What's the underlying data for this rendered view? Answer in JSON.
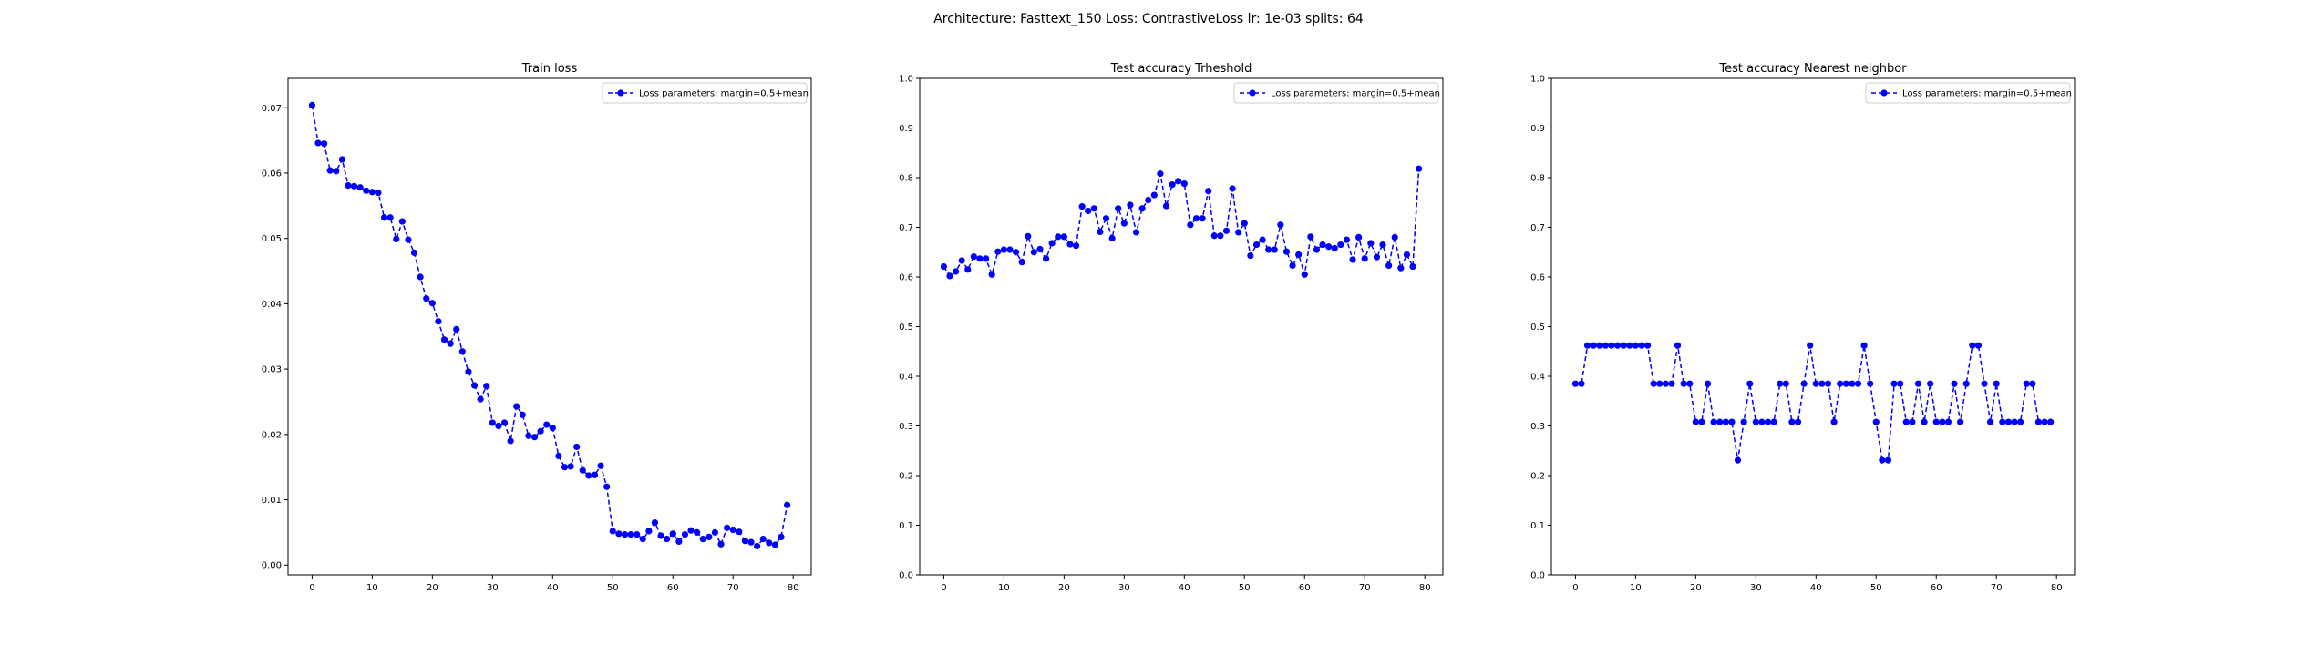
{
  "suptitle": "Architecture: Fasttext_150 Loss: ContrastiveLoss lr: 1e-03 splits: 64",
  "colors": {
    "series": "#0000ff",
    "frame": "#000000",
    "background": "#ffffff"
  },
  "chart_data": [
    {
      "type": "line",
      "title": "Train loss",
      "xlim": [
        -4,
        83
      ],
      "ylim": [
        -0.0015,
        0.0745
      ],
      "xticks": [
        0,
        10,
        20,
        30,
        40,
        50,
        60,
        70,
        80
      ],
      "yticks": [
        0.0,
        0.01,
        0.02,
        0.03,
        0.04,
        0.05,
        0.06,
        0.07
      ],
      "ytick_labels": [
        "0.00",
        "0.01",
        "0.02",
        "0.03",
        "0.04",
        "0.05",
        "0.06",
        "0.07"
      ],
      "legend_loc": "upper right",
      "series": [
        {
          "name": "Loss parameters: margin=0.5+mean",
          "style": "dashed line with circle markers",
          "x": [
            0,
            1,
            2,
            3,
            4,
            5,
            6,
            7,
            8,
            9,
            10,
            11,
            12,
            13,
            14,
            15,
            16,
            17,
            18,
            19,
            20,
            21,
            22,
            23,
            24,
            25,
            26,
            27,
            28,
            29,
            30,
            31,
            32,
            33,
            34,
            35,
            36,
            37,
            38,
            39,
            40,
            41,
            42,
            43,
            44,
            45,
            46,
            47,
            48,
            49,
            50,
            51,
            52,
            53,
            54,
            55,
            56,
            57,
            58,
            59,
            60,
            61,
            62,
            63,
            64,
            65,
            66,
            67,
            68,
            69,
            70,
            71,
            72,
            73,
            74,
            75,
            76,
            77,
            78,
            79
          ],
          "values": [
            0.0704,
            0.0646,
            0.0645,
            0.0604,
            0.0603,
            0.0621,
            0.0581,
            0.058,
            0.0578,
            0.0573,
            0.0571,
            0.057,
            0.0532,
            0.0532,
            0.0499,
            0.0526,
            0.0498,
            0.0478,
            0.0441,
            0.0408,
            0.0401,
            0.0373,
            0.0345,
            0.0339,
            0.0361,
            0.0327,
            0.0296,
            0.0275,
            0.0254,
            0.0274,
            0.0218,
            0.0213,
            0.0218,
            0.019,
            0.0243,
            0.023,
            0.0198,
            0.0196,
            0.0205,
            0.0215,
            0.021,
            0.0167,
            0.015,
            0.0151,
            0.0181,
            0.0145,
            0.0137,
            0.0138,
            0.0152,
            0.012,
            0.0052,
            0.0048,
            0.0047,
            0.0047,
            0.0047,
            0.004,
            0.0052,
            0.0065,
            0.0045,
            0.004,
            0.0048,
            0.0036,
            0.0047,
            0.0053,
            0.005,
            0.004,
            0.0043,
            0.005,
            0.0032,
            0.0057,
            0.0054,
            0.0051,
            0.0037,
            0.0035,
            0.0029,
            0.004,
            0.0034,
            0.0031,
            0.0043,
            0.0092
          ]
        }
      ]
    },
    {
      "type": "line",
      "title": "Test accuracy Trheshold",
      "xlim": [
        -4,
        83
      ],
      "ylim": [
        0.0,
        1.0
      ],
      "xticks": [
        0,
        10,
        20,
        30,
        40,
        50,
        60,
        70,
        80
      ],
      "yticks": [
        0.0,
        0.1,
        0.2,
        0.3,
        0.4,
        0.5,
        0.6,
        0.7,
        0.8,
        0.9,
        1.0
      ],
      "ytick_labels": [
        "0.0",
        "0.1",
        "0.2",
        "0.3",
        "0.4",
        "0.5",
        "0.6",
        "0.7",
        "0.8",
        "0.9",
        "1.0"
      ],
      "legend_loc": "upper right",
      "series": [
        {
          "name": "Loss parameters: margin=0.5+mean",
          "style": "dashed line with circle markers",
          "x": [
            0,
            1,
            2,
            3,
            4,
            5,
            6,
            7,
            8,
            9,
            10,
            11,
            12,
            13,
            14,
            15,
            16,
            17,
            18,
            19,
            20,
            21,
            22,
            23,
            24,
            25,
            26,
            27,
            28,
            29,
            30,
            31,
            32,
            33,
            34,
            35,
            36,
            37,
            38,
            39,
            40,
            41,
            42,
            43,
            44,
            45,
            46,
            47,
            48,
            49,
            50,
            51,
            52,
            53,
            54,
            55,
            56,
            57,
            58,
            59,
            60,
            61,
            62,
            63,
            64,
            65,
            66,
            67,
            68,
            69,
            70,
            71,
            72,
            73,
            74,
            75,
            76,
            77,
            78,
            79
          ],
          "values": [
            0.621,
            0.602,
            0.611,
            0.633,
            0.615,
            0.641,
            0.637,
            0.637,
            0.605,
            0.651,
            0.655,
            0.655,
            0.65,
            0.63,
            0.682,
            0.65,
            0.656,
            0.637,
            0.668,
            0.681,
            0.681,
            0.666,
            0.663,
            0.742,
            0.733,
            0.738,
            0.691,
            0.718,
            0.678,
            0.738,
            0.708,
            0.745,
            0.69,
            0.738,
            0.755,
            0.765,
            0.808,
            0.743,
            0.786,
            0.793,
            0.788,
            0.705,
            0.718,
            0.718,
            0.773,
            0.683,
            0.683,
            0.693,
            0.778,
            0.69,
            0.708,
            0.643,
            0.665,
            0.675,
            0.655,
            0.655,
            0.705,
            0.651,
            0.623,
            0.645,
            0.605,
            0.681,
            0.655,
            0.665,
            0.661,
            0.658,
            0.665,
            0.675,
            0.635,
            0.68,
            0.637,
            0.668,
            0.64,
            0.665,
            0.623,
            0.68,
            0.618,
            0.645,
            0.621,
            0.818
          ]
        }
      ]
    },
    {
      "type": "line",
      "title": "Test accuracy Nearest neighbor",
      "xlim": [
        -4,
        83
      ],
      "ylim": [
        0.0,
        1.0
      ],
      "xticks": [
        0,
        10,
        20,
        30,
        40,
        50,
        60,
        70,
        80
      ],
      "yticks": [
        0.0,
        0.1,
        0.2,
        0.3,
        0.4,
        0.5,
        0.6,
        0.7,
        0.8,
        0.9,
        1.0
      ],
      "ytick_labels": [
        "0.0",
        "0.1",
        "0.2",
        "0.3",
        "0.4",
        "0.5",
        "0.6",
        "0.7",
        "0.8",
        "0.9",
        "1.0"
      ],
      "legend_loc": "upper right",
      "series": [
        {
          "name": "Loss parameters: margin=0.5+mean",
          "style": "dashed line with circle markers",
          "x": [
            0,
            1,
            2,
            3,
            4,
            5,
            6,
            7,
            8,
            9,
            10,
            11,
            12,
            13,
            14,
            15,
            16,
            17,
            18,
            19,
            20,
            21,
            22,
            23,
            24,
            25,
            26,
            27,
            28,
            29,
            30,
            31,
            32,
            33,
            34,
            35,
            36,
            37,
            38,
            39,
            40,
            41,
            42,
            43,
            44,
            45,
            46,
            47,
            48,
            49,
            50,
            51,
            52,
            53,
            54,
            55,
            56,
            57,
            58,
            59,
            60,
            61,
            62,
            63,
            64,
            65,
            66,
            67,
            68,
            69,
            70,
            71,
            72,
            73,
            74,
            75,
            76,
            77,
            78,
            79
          ],
          "values": [
            0.385,
            0.385,
            0.462,
            0.462,
            0.462,
            0.462,
            0.462,
            0.462,
            0.462,
            0.462,
            0.462,
            0.462,
            0.462,
            0.385,
            0.385,
            0.385,
            0.385,
            0.462,
            0.385,
            0.385,
            0.308,
            0.308,
            0.385,
            0.308,
            0.308,
            0.308,
            0.308,
            0.231,
            0.308,
            0.385,
            0.308,
            0.308,
            0.308,
            0.308,
            0.385,
            0.385,
            0.308,
            0.308,
            0.385,
            0.462,
            0.385,
            0.385,
            0.385,
            0.308,
            0.385,
            0.385,
            0.385,
            0.385,
            0.462,
            0.385,
            0.308,
            0.231,
            0.231,
            0.385,
            0.385,
            0.308,
            0.308,
            0.385,
            0.308,
            0.385,
            0.308,
            0.308,
            0.308,
            0.385,
            0.308,
            0.385,
            0.462,
            0.462,
            0.385,
            0.308,
            0.385,
            0.308,
            0.308,
            0.308,
            0.308,
            0.385,
            0.385,
            0.308,
            0.308,
            0.308
          ]
        }
      ]
    }
  ]
}
